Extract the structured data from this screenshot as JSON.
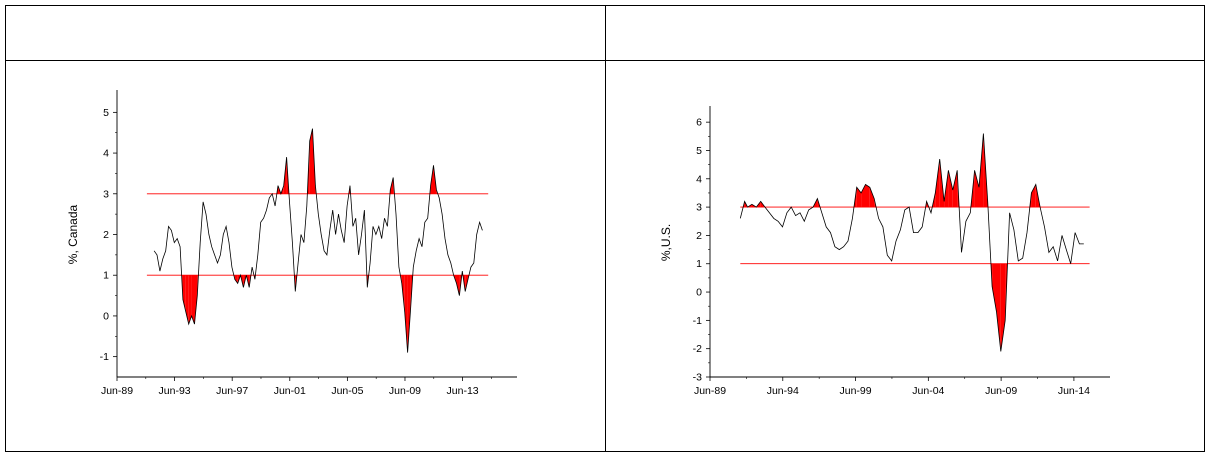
{
  "chart_data": [
    {
      "type": "line",
      "ylabel": "%, Canada",
      "xlabel": "",
      "xlim": [
        1989.42,
        2017.2
      ],
      "ylim": [
        -1.5,
        5.5
      ],
      "yticks": [
        -1,
        0,
        1,
        2,
        3,
        4,
        5
      ],
      "xticks": [
        {
          "label": "Jun-89",
          "x": 1989.42
        },
        {
          "label": "Jun-93",
          "x": 1993.42
        },
        {
          "label": "Jun-97",
          "x": 1997.42
        },
        {
          "label": "Jun-01",
          "x": 2001.42
        },
        {
          "label": "Jun-05",
          "x": 2005.42
        },
        {
          "label": "Jun-09",
          "x": 2009.42
        },
        {
          "label": "Jun-13",
          "x": 2013.42
        }
      ],
      "bands": [
        1,
        3
      ],
      "band_color": "#ff0000",
      "fill_color": "#ff0000",
      "series": [
        {
          "x": [
            1992.0,
            1992.2,
            1992.4,
            1992.6,
            1992.8,
            1993.0,
            1993.2,
            1993.4,
            1993.6,
            1993.8,
            1994.0,
            1994.2,
            1994.4,
            1994.6,
            1994.8,
            1995.0,
            1995.2,
            1995.4,
            1995.6,
            1995.8,
            1996.0,
            1996.2,
            1996.4,
            1996.6,
            1996.8,
            1997.0,
            1997.2,
            1997.4,
            1997.6,
            1997.8,
            1998.0,
            1998.2,
            1998.4,
            1998.6,
            1998.8,
            1999.0,
            1999.2,
            1999.4,
            1999.6,
            1999.8,
            2000.0,
            2000.2,
            2000.4,
            2000.6,
            2000.8,
            2001.0,
            2001.2,
            2001.4,
            2001.6,
            2001.8,
            2002.0,
            2002.2,
            2002.4,
            2002.6,
            2002.8,
            2003.0,
            2003.2,
            2003.4,
            2003.6,
            2003.8,
            2004.0,
            2004.2,
            2004.4,
            2004.6,
            2004.8,
            2005.0,
            2005.2,
            2005.4,
            2005.6,
            2005.8,
            2006.0,
            2006.2,
            2006.4,
            2006.6,
            2006.8,
            2007.0,
            2007.2,
            2007.4,
            2007.6,
            2007.8,
            2008.0,
            2008.2,
            2008.4,
            2008.6,
            2008.8,
            2009.0,
            2009.2,
            2009.4,
            2009.6,
            2009.8,
            2010.0,
            2010.2,
            2010.4,
            2010.6,
            2010.8,
            2011.0,
            2011.2,
            2011.4,
            2011.6,
            2011.8,
            2012.0,
            2012.2,
            2012.4,
            2012.6,
            2012.8,
            2013.0,
            2013.2,
            2013.4,
            2013.6,
            2013.8,
            2014.0,
            2014.2,
            2014.4,
            2014.6,
            2014.8
          ],
          "y": [
            1.6,
            1.5,
            1.1,
            1.4,
            1.6,
            2.2,
            2.1,
            1.8,
            1.9,
            1.7,
            0.4,
            0.1,
            -0.2,
            0.0,
            -0.2,
            0.5,
            1.8,
            2.8,
            2.5,
            2.0,
            1.7,
            1.5,
            1.3,
            1.5,
            2.0,
            2.2,
            1.8,
            1.2,
            0.9,
            0.8,
            1.0,
            0.7,
            1.0,
            0.7,
            1.2,
            0.9,
            1.5,
            2.3,
            2.4,
            2.6,
            2.9,
            3.0,
            2.7,
            3.2,
            3.0,
            3.2,
            3.9,
            2.8,
            1.8,
            0.6,
            1.3,
            2.0,
            1.8,
            2.7,
            4.3,
            4.6,
            3.2,
            2.5,
            2.0,
            1.6,
            1.5,
            2.1,
            2.6,
            2.0,
            2.5,
            2.1,
            1.8,
            2.7,
            3.2,
            2.2,
            2.4,
            1.5,
            2.0,
            2.6,
            0.7,
            1.3,
            2.2,
            2.0,
            2.2,
            1.9,
            2.4,
            2.2,
            3.1,
            3.4,
            2.5,
            1.2,
            0.8,
            0.1,
            -0.9,
            0.1,
            1.2,
            1.6,
            1.9,
            1.7,
            2.3,
            2.4,
            3.2,
            3.7,
            3.1,
            2.9,
            2.5,
            1.9,
            1.5,
            1.3,
            1.0,
            0.8,
            0.5,
            1.1,
            0.6,
            0.9,
            1.2,
            1.3,
            2.0,
            2.3,
            2.1
          ]
        }
      ]
    },
    {
      "type": "line",
      "ylabel": "%,U.S.",
      "xlabel": "",
      "xlim": [
        1989.42,
        2016.9
      ],
      "ylim": [
        -3,
        6.5
      ],
      "yticks": [
        -3,
        -2,
        -1,
        0,
        1,
        2,
        3,
        4,
        5,
        6
      ],
      "xticks": [
        {
          "label": "Jun-89",
          "x": 1989.42
        },
        {
          "label": "Jun-94",
          "x": 1994.42
        },
        {
          "label": "Jun-99",
          "x": 1999.42
        },
        {
          "label": "Jun-04",
          "x": 2004.42
        },
        {
          "label": "Jun-09",
          "x": 2009.42
        },
        {
          "label": "Jun-14",
          "x": 2014.42
        }
      ],
      "bands": [
        1,
        3
      ],
      "band_color": "#ff0000",
      "fill_color": "#ff0000",
      "series": [
        {
          "x": [
            1991.5,
            1991.8,
            1992.0,
            1992.3,
            1992.6,
            1992.9,
            1993.2,
            1993.5,
            1993.8,
            1994.1,
            1994.4,
            1994.7,
            1995.0,
            1995.3,
            1995.6,
            1995.9,
            1996.2,
            1996.5,
            1996.8,
            1997.1,
            1997.4,
            1997.7,
            1998.0,
            1998.3,
            1998.6,
            1998.9,
            1999.2,
            1999.5,
            1999.8,
            2000.1,
            2000.4,
            2000.7,
            2001.0,
            2001.3,
            2001.6,
            2001.9,
            2002.2,
            2002.5,
            2002.8,
            2003.1,
            2003.4,
            2003.7,
            2004.0,
            2004.3,
            2004.6,
            2004.9,
            2005.2,
            2005.5,
            2005.8,
            2006.1,
            2006.4,
            2006.7,
            2007.0,
            2007.3,
            2007.6,
            2007.9,
            2008.2,
            2008.5,
            2008.8,
            2009.1,
            2009.4,
            2009.7,
            2010.0,
            2010.3,
            2010.6,
            2010.9,
            2011.2,
            2011.5,
            2011.8,
            2012.1,
            2012.4,
            2012.7,
            2013.0,
            2013.3,
            2013.6,
            2013.9,
            2014.2,
            2014.5,
            2014.8,
            2015.1
          ],
          "y": [
            2.6,
            3.2,
            3.0,
            3.1,
            3.0,
            3.2,
            3.0,
            2.8,
            2.6,
            2.5,
            2.3,
            2.8,
            3.0,
            2.7,
            2.8,
            2.5,
            2.9,
            3.0,
            3.3,
            2.8,
            2.3,
            2.1,
            1.6,
            1.5,
            1.6,
            1.8,
            2.6,
            3.7,
            3.5,
            3.8,
            3.7,
            3.3,
            2.6,
            2.3,
            1.3,
            1.1,
            1.8,
            2.2,
            2.9,
            3.0,
            2.1,
            2.1,
            2.3,
            3.2,
            2.8,
            3.5,
            4.7,
            3.2,
            4.3,
            3.6,
            4.3,
            1.4,
            2.5,
            2.8,
            4.3,
            3.7,
            5.6,
            3.2,
            0.2,
            -0.7,
            -2.1,
            -1.0,
            2.8,
            2.2,
            1.1,
            1.2,
            2.1,
            3.5,
            3.8,
            3.0,
            2.3,
            1.4,
            1.6,
            1.1,
            2.0,
            1.5,
            1.0,
            2.1,
            1.7,
            1.7
          ]
        }
      ]
    }
  ]
}
